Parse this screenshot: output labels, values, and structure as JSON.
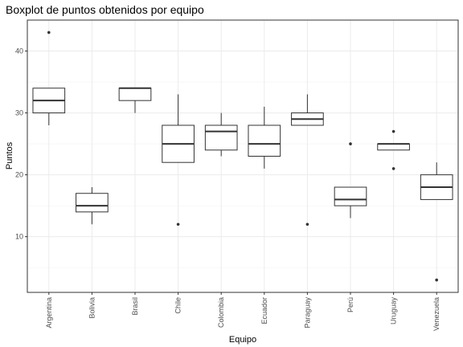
{
  "chart_data": {
    "type": "boxplot",
    "title": "Boxplot de puntos obtenidos por equipo",
    "xlabel": "Equipo",
    "ylabel": "Puntos",
    "ylim": [
      1,
      45
    ],
    "yticks": [
      10,
      20,
      30,
      40
    ],
    "grid": true,
    "categories": [
      "Argentina",
      "Bolivia",
      "Brasil",
      "Chile",
      "Colombia",
      "Ecuador",
      "Paraguay",
      "Perú",
      "Uruguay",
      "Venezuela"
    ],
    "boxes": [
      {
        "category": "Argentina",
        "whisker_low": 28,
        "q1": 30,
        "median": 32,
        "q3": 34,
        "whisker_high": 34,
        "outliers": [
          43
        ]
      },
      {
        "category": "Bolivia",
        "whisker_low": 12,
        "q1": 14,
        "median": 15,
        "q3": 17,
        "whisker_high": 18,
        "outliers": []
      },
      {
        "category": "Brasil",
        "whisker_low": 30,
        "q1": 32,
        "median": 34,
        "q3": 34,
        "whisker_high": 34,
        "outliers": []
      },
      {
        "category": "Chile",
        "whisker_low": 22,
        "q1": 22,
        "median": 25,
        "q3": 28,
        "whisker_high": 33,
        "outliers": [
          12
        ]
      },
      {
        "category": "Colombia",
        "whisker_low": 23,
        "q1": 24,
        "median": 27,
        "q3": 28,
        "whisker_high": 30,
        "outliers": []
      },
      {
        "category": "Ecuador",
        "whisker_low": 21,
        "q1": 23,
        "median": 25,
        "q3": 28,
        "whisker_high": 31,
        "outliers": []
      },
      {
        "category": "Paraguay",
        "whisker_low": 28,
        "q1": 28,
        "median": 29,
        "q3": 30,
        "whisker_high": 33,
        "outliers": [
          12
        ]
      },
      {
        "category": "Perú",
        "whisker_low": 13,
        "q1": 15,
        "median": 16,
        "q3": 18,
        "whisker_high": 18,
        "outliers": [
          25
        ]
      },
      {
        "category": "Uruguay",
        "whisker_low": 24,
        "q1": 24,
        "median": 25,
        "q3": 25,
        "whisker_high": 25,
        "outliers": [
          27,
          21
        ]
      },
      {
        "category": "Venezuela",
        "whisker_low": 16,
        "q1": 16,
        "median": 18,
        "q3": 20,
        "whisker_high": 22,
        "outliers": [
          3
        ]
      }
    ]
  }
}
